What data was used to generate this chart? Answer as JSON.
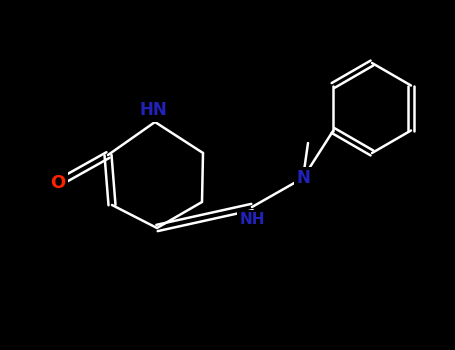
{
  "background_color": "#000000",
  "atom_colors": {
    "O": "#ff2200",
    "N": "#2222bb",
    "C": "#ffffff"
  },
  "figure_width": 4.55,
  "figure_height": 3.5,
  "dpi": 100,
  "bond_lw": 1.8,
  "bond_color": "#ffffff",
  "label_fontsize": 11
}
